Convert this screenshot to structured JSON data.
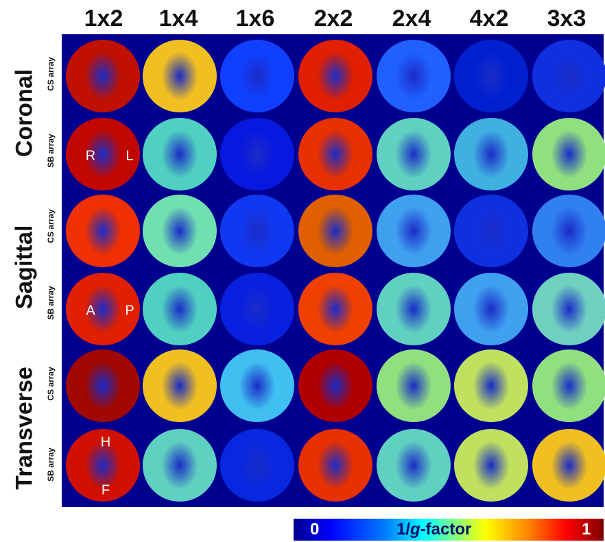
{
  "columns": [
    "1x2",
    "1x4",
    "1x6",
    "2x2",
    "2x4",
    "4x2",
    "3x3"
  ],
  "groups": [
    {
      "label": "Coronal",
      "arrays": [
        "CS array",
        "SB array"
      ],
      "orientation": [
        "R",
        "L"
      ]
    },
    {
      "label": "Sagittal",
      "arrays": [
        "CS array",
        "SB array"
      ],
      "orientation": [
        "A",
        "P"
      ]
    },
    {
      "label": "Transverse",
      "arrays": [
        "CS array",
        "SB array"
      ],
      "orientation": [
        "H",
        "F"
      ]
    }
  ],
  "colorbar": {
    "min": "0",
    "label_prefix": "1/",
    "label_italic": "g",
    "label_suffix": "-factor",
    "max": "1"
  },
  "colors": {
    "background": "#00008f",
    "low": "#0000ff",
    "mid": "#00ffff",
    "high": "#ff0000",
    "max": "#800000"
  },
  "maps": [
    [
      "#c01000",
      "#f0c020",
      "#1040ff",
      "#e02000",
      "#2060ff",
      "#0020d0",
      "#1030e0"
    ],
    [
      "#c00800",
      "#50d0c0",
      "#0818e0",
      "#e83000",
      "#60d0c0",
      "#40b0e0",
      "#90e080"
    ],
    [
      "#f03000",
      "#70e0b0",
      "#1038f0",
      "#e06000",
      "#40a0f0",
      "#1030e0",
      "#3080f0"
    ],
    [
      "#e02000",
      "#50d0c0",
      "#0820e0",
      "#f04000",
      "#60d0c0",
      "#40a0f0",
      "#70d0c0"
    ],
    [
      "#a00800",
      "#f0c020",
      "#40c0f0",
      "#b00000",
      "#90e080",
      "#c0e060",
      "#90e080"
    ],
    [
      "#d01000",
      "#60d0c0",
      "#0828e0",
      "#e83000",
      "#60d0c0",
      "#c0e060",
      "#f0c020"
    ]
  ]
}
